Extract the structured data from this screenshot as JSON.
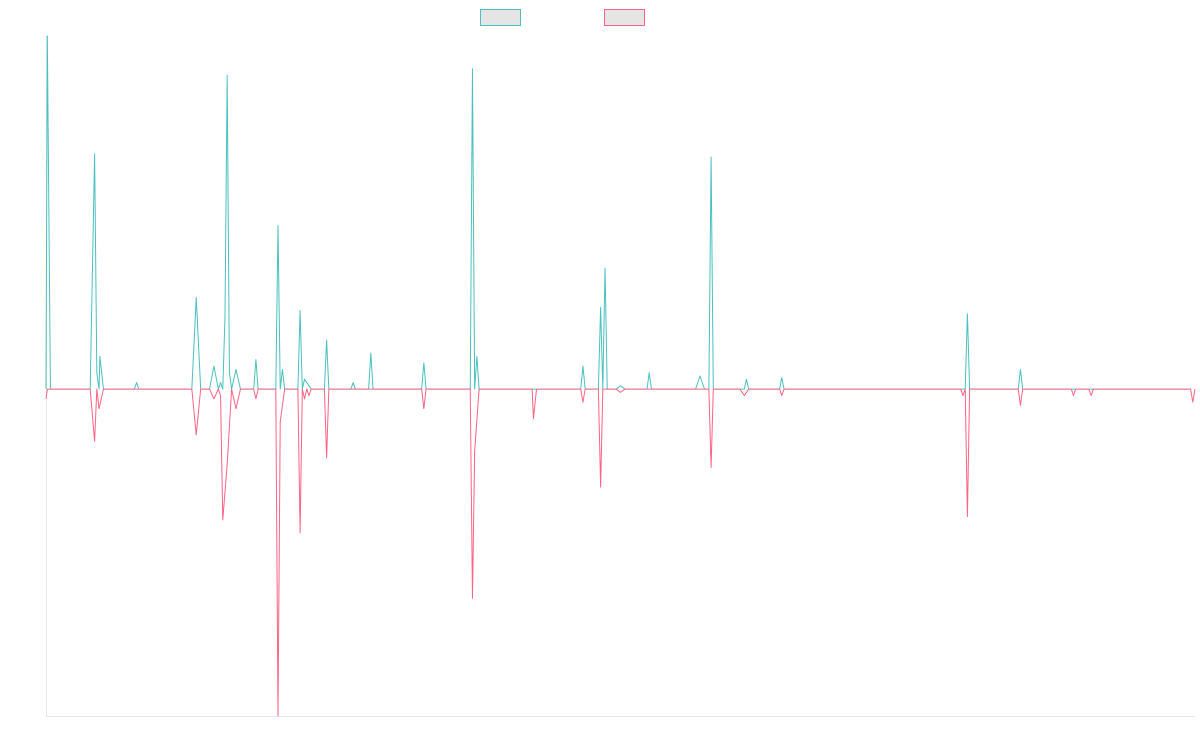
{
  "colors": {
    "series_a": "#4bc0c0",
    "series_b": "#ff6384",
    "legend_fill": "#e5e5e5",
    "axis": "#e6e6e6"
  },
  "chart_data": {
    "type": "line",
    "title": "",
    "xlabel": "",
    "ylabel": "",
    "legend_position": "top-center",
    "grid": false,
    "ylim": [
      -1.0,
      1.08
    ],
    "xlim": [
      0,
      255
    ],
    "series": [
      {
        "color": "#4bc0c0",
        "points": [
          [
            0,
            0
          ],
          [
            0.3,
            1.08
          ],
          [
            1,
            0
          ],
          [
            10,
            0
          ],
          [
            11,
            0.72
          ],
          [
            11.5,
            0.05
          ],
          [
            12,
            0
          ],
          [
            12.2,
            0.1
          ],
          [
            13,
            0
          ],
          [
            20,
            0
          ],
          [
            20.5,
            0.02
          ],
          [
            21,
            0
          ],
          [
            33,
            0
          ],
          [
            34,
            0.28
          ],
          [
            35,
            0
          ],
          [
            37,
            0
          ],
          [
            38,
            0.07
          ],
          [
            39,
            0
          ],
          [
            39.5,
            0.02
          ],
          [
            40,
            0
          ],
          [
            40.5,
            0.22
          ],
          [
            41,
            0.96
          ],
          [
            41.5,
            0.05
          ],
          [
            42,
            0
          ],
          [
            43,
            0.06
          ],
          [
            44,
            0
          ],
          [
            47,
            0
          ],
          [
            47.5,
            0.09
          ],
          [
            48,
            0
          ],
          [
            52,
            0
          ],
          [
            52.5,
            0.5
          ],
          [
            53,
            0
          ],
          [
            53.5,
            0.06
          ],
          [
            54,
            0
          ],
          [
            57,
            0
          ],
          [
            57.5,
            0.24
          ],
          [
            58,
            0
          ],
          [
            58.5,
            0.03
          ],
          [
            60,
            0
          ],
          [
            63,
            0
          ],
          [
            63.5,
            0.15
          ],
          [
            64,
            0
          ],
          [
            69,
            0
          ],
          [
            69.5,
            0.02
          ],
          [
            70,
            0
          ],
          [
            73,
            0
          ],
          [
            73.5,
            0.11
          ],
          [
            74,
            0
          ],
          [
            85,
            0
          ],
          [
            85.5,
            0.08
          ],
          [
            86,
            0
          ],
          [
            96,
            0
          ],
          [
            96.5,
            0.98
          ],
          [
            97,
            0
          ],
          [
            97.5,
            0.1
          ],
          [
            98,
            0
          ],
          [
            121,
            0
          ],
          [
            121.5,
            0.07
          ],
          [
            122,
            0
          ],
          [
            125,
            0
          ],
          [
            125.5,
            0.25
          ],
          [
            126,
            0
          ],
          [
            126.5,
            0.37
          ],
          [
            127,
            0
          ],
          [
            129,
            0
          ],
          [
            130,
            0.01
          ],
          [
            131,
            0
          ],
          [
            136,
            0
          ],
          [
            136.5,
            0.05
          ],
          [
            137,
            0
          ],
          [
            150,
            0
          ],
          [
            150.5,
            0.71
          ],
          [
            151,
            0
          ],
          [
            147,
            0
          ],
          [
            148,
            0.04
          ],
          [
            149,
            0
          ],
          [
            158,
            0
          ],
          [
            158.5,
            0.03
          ],
          [
            159,
            0
          ],
          [
            166,
            0
          ],
          [
            166.5,
            0.035
          ],
          [
            167,
            0
          ],
          [
            208,
            0
          ],
          [
            208.5,
            0.23
          ],
          [
            209,
            0
          ],
          [
            220,
            0
          ],
          [
            220.5,
            0.06
          ],
          [
            221,
            0
          ],
          [
            259,
            0
          ]
        ]
      },
      {
        "color": "#ff6384",
        "points": [
          [
            0,
            -0.03
          ],
          [
            0.3,
            0
          ],
          [
            10,
            0
          ],
          [
            11,
            -0.16
          ],
          [
            11.5,
            0
          ],
          [
            12,
            -0.06
          ],
          [
            13,
            0
          ],
          [
            33,
            0
          ],
          [
            34,
            -0.14
          ],
          [
            35,
            0
          ],
          [
            37,
            0
          ],
          [
            38,
            -0.03
          ],
          [
            39,
            0
          ],
          [
            39.5,
            -0.02
          ],
          [
            40,
            -0.4
          ],
          [
            41,
            -0.23
          ],
          [
            42,
            0
          ],
          [
            43,
            -0.06
          ],
          [
            44,
            0
          ],
          [
            47,
            0
          ],
          [
            47.5,
            -0.03
          ],
          [
            48,
            0
          ],
          [
            52,
            0
          ],
          [
            52.5,
            -1.0
          ],
          [
            53,
            -0.1
          ],
          [
            54,
            0
          ],
          [
            57,
            0
          ],
          [
            57.5,
            -0.44
          ],
          [
            58,
            0
          ],
          [
            58.5,
            -0.03
          ],
          [
            59,
            0
          ],
          [
            59.5,
            -0.02
          ],
          [
            60,
            0
          ],
          [
            63,
            0
          ],
          [
            63.5,
            -0.21
          ],
          [
            64,
            0
          ],
          [
            85,
            0
          ],
          [
            85.5,
            -0.06
          ],
          [
            86,
            0
          ],
          [
            96,
            0
          ],
          [
            96.5,
            -0.64
          ],
          [
            97,
            -0.19
          ],
          [
            98,
            0
          ],
          [
            110,
            0
          ],
          [
            110.3,
            -0.09
          ],
          [
            111,
            0
          ],
          [
            121,
            0
          ],
          [
            121.5,
            -0.04
          ],
          [
            122,
            0
          ],
          [
            125,
            0
          ],
          [
            125.5,
            -0.3
          ],
          [
            126,
            0
          ],
          [
            129,
            0
          ],
          [
            130,
            -0.01
          ],
          [
            131,
            0
          ],
          [
            150,
            0
          ],
          [
            150.5,
            -0.24
          ],
          [
            151,
            0
          ],
          [
            157,
            0
          ],
          [
            158,
            -0.02
          ],
          [
            159,
            0
          ],
          [
            166,
            0
          ],
          [
            166.5,
            -0.02
          ],
          [
            167,
            0
          ],
          [
            207,
            0
          ],
          [
            207.5,
            -0.02
          ],
          [
            208,
            0
          ],
          [
            208.5,
            -0.39
          ],
          [
            209,
            0
          ],
          [
            220,
            0
          ],
          [
            220.5,
            -0.05
          ],
          [
            221,
            0
          ],
          [
            232,
            0
          ],
          [
            232.5,
            -0.02
          ],
          [
            233,
            0
          ],
          [
            236,
            0
          ],
          [
            236.5,
            -0.02
          ],
          [
            237,
            0
          ],
          [
            259,
            0
          ],
          [
            259.5,
            -0.04
          ],
          [
            260,
            0
          ]
        ]
      }
    ]
  }
}
